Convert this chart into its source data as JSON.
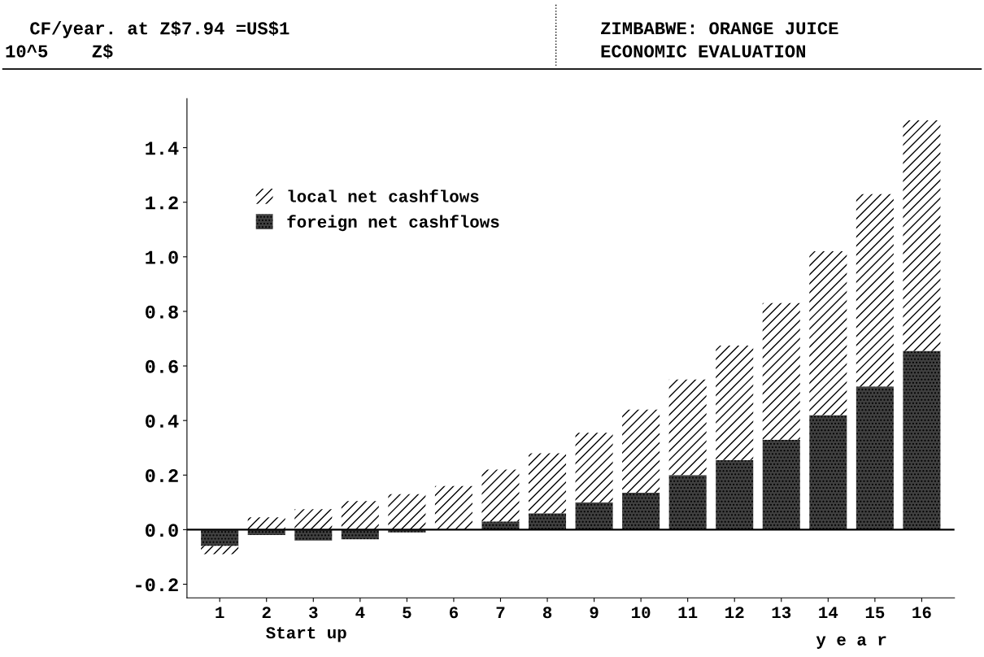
{
  "chart_data": {
    "type": "bar",
    "title": "ZIMBABWE: ORANGE JUICE",
    "subtitle": "ECONOMIC EVALUATION",
    "ylabel": "10^5    Z$",
    "xlabel": "y e a r",
    "annotations": [
      "CF/year. at Z$7.94 =US$1",
      "Start up"
    ],
    "categories": [
      "1",
      "2",
      "3",
      "4",
      "5",
      "6",
      "7",
      "8",
      "9",
      "10",
      "11",
      "12",
      "13",
      "14",
      "15",
      "16"
    ],
    "stacked": true,
    "series": [
      {
        "name": "foreign net cashflows",
        "color": "#404040",
        "values": [
          -0.06,
          -0.02,
          -0.04,
          -0.035,
          -0.01,
          0,
          0.03,
          0.06,
          0.1,
          0.135,
          0.2,
          0.255,
          0.33,
          0.42,
          0.525,
          0.655
        ]
      },
      {
        "name": "local net cashflows",
        "color": "#ffffff",
        "values": [
          -0.03,
          0.045,
          0.075,
          0.105,
          0.13,
          0.16,
          0.19,
          0.22,
          0.255,
          0.305,
          0.35,
          0.42,
          0.5,
          0.6,
          0.705,
          0.845
        ]
      }
    ],
    "ylim": [
      -0.25,
      1.58
    ],
    "yticks": [
      -0.2,
      {
        "value": 0,
        "label": "0.0"
      },
      0.2,
      0.4,
      0.6,
      0.8,
      {
        "value": 1,
        "label": "1.0"
      },
      1.2,
      1.4
    ],
    "ref_lines": [
      {
        "axis": "y",
        "value": 0
      }
    ],
    "legend": "top left",
    "grid": false
  }
}
